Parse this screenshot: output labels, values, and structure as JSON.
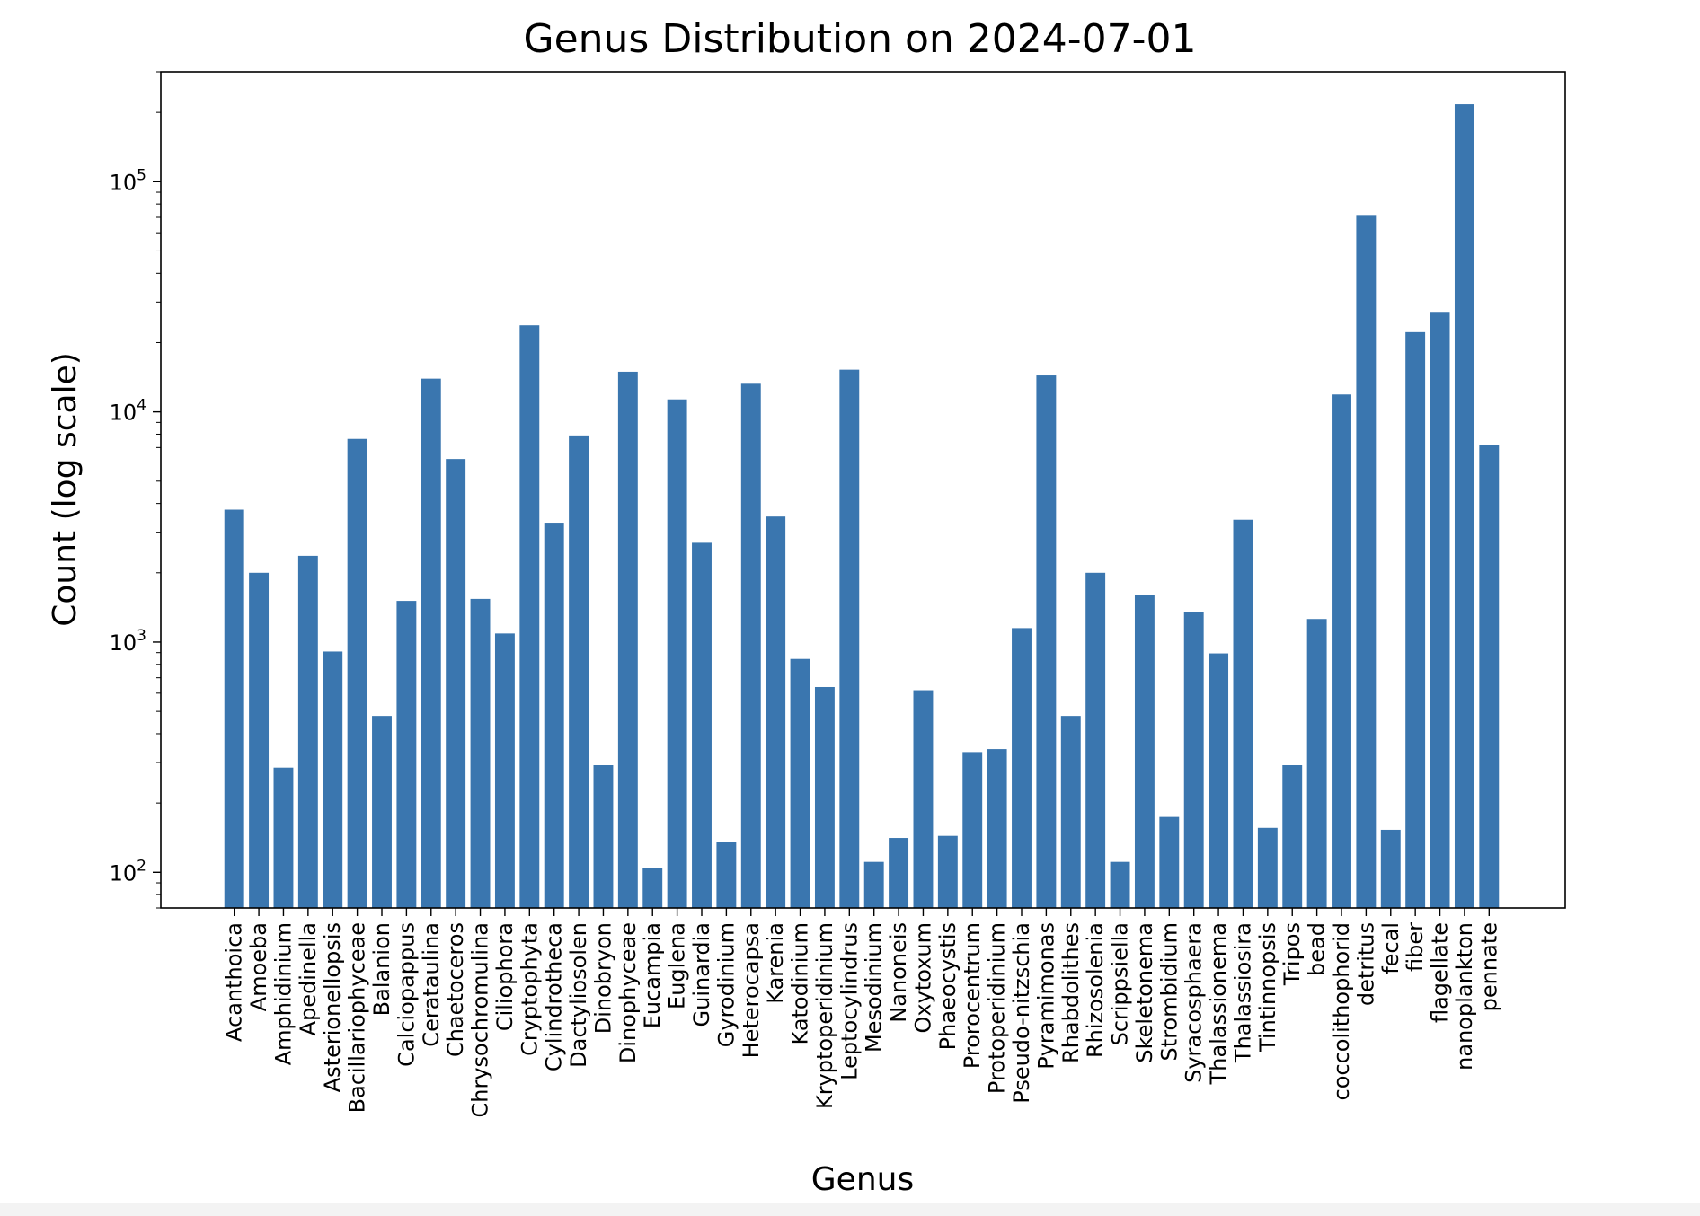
{
  "chart_data": {
    "type": "bar",
    "title": "Genus Distribution on 2024-07-01",
    "xlabel": "Genus",
    "ylabel": "Count (log scale)",
    "yscale": "log",
    "ylim": [
      70,
      300000
    ],
    "yticks": [
      {
        "value": 100,
        "base": "10",
        "exp": "2"
      },
      {
        "value": 1000,
        "base": "10",
        "exp": "3"
      },
      {
        "value": 10000,
        "base": "10",
        "exp": "4"
      },
      {
        "value": 100000,
        "base": "10",
        "exp": "5"
      }
    ],
    "grid": false,
    "bar_color": "#3a76af",
    "categories": [
      "Acanthoica",
      "Amoeba",
      "Amphidinium",
      "Apedinella",
      "Asterionellopsis",
      "Bacillariophyceae",
      "Balanion",
      "Calciopappus",
      "Cerataulina",
      "Chaetoceros",
      "Chrysochromulina",
      "Ciliophora",
      "Cryptophyta",
      "Cylindrotheca",
      "Dactyliosolen",
      "Dinobryon",
      "Dinophyceae",
      "Eucampia",
      "Euglena",
      "Guinardia",
      "Gyrodinium",
      "Heterocapsa",
      "Karenia",
      "Katodinium",
      "Kryptoperidinium",
      "Leptocylindrus",
      "Mesodinium",
      "Nanoneis",
      "Oxytoxum",
      "Phaeocystis",
      "Prorocentrum",
      "Protoperidinium",
      "Pseudo-nitzschia",
      "Pyramimonas",
      "Rhabdolithes",
      "Rhizosolenia",
      "Scrippsiella",
      "Skeletonema",
      "Strombidium",
      "Syracosphaera",
      "Thalassionema",
      "Thalassiosira",
      "Tintinnopsis",
      "Tripos",
      "bead",
      "coccolithophorid",
      "detritus",
      "fecal",
      "fiber",
      "flagellate",
      "nanoplankton",
      "pennate"
    ],
    "values": [
      3760,
      2000,
      285,
      2370,
      910,
      7630,
      478,
      1510,
      13940,
      6240,
      1540,
      1090,
      23780,
      3300,
      7900,
      292,
      14940,
      104,
      11330,
      2700,
      136,
      13250,
      3510,
      845,
      638,
      15250,
      111,
      141,
      618,
      144,
      333,
      343,
      1150,
      14400,
      478,
      2000,
      111,
      1600,
      174,
      1350,
      893,
      3400,
      156,
      292,
      1260,
      11900,
      71700,
      153,
      22200,
      27200,
      217000,
      7150
    ]
  }
}
